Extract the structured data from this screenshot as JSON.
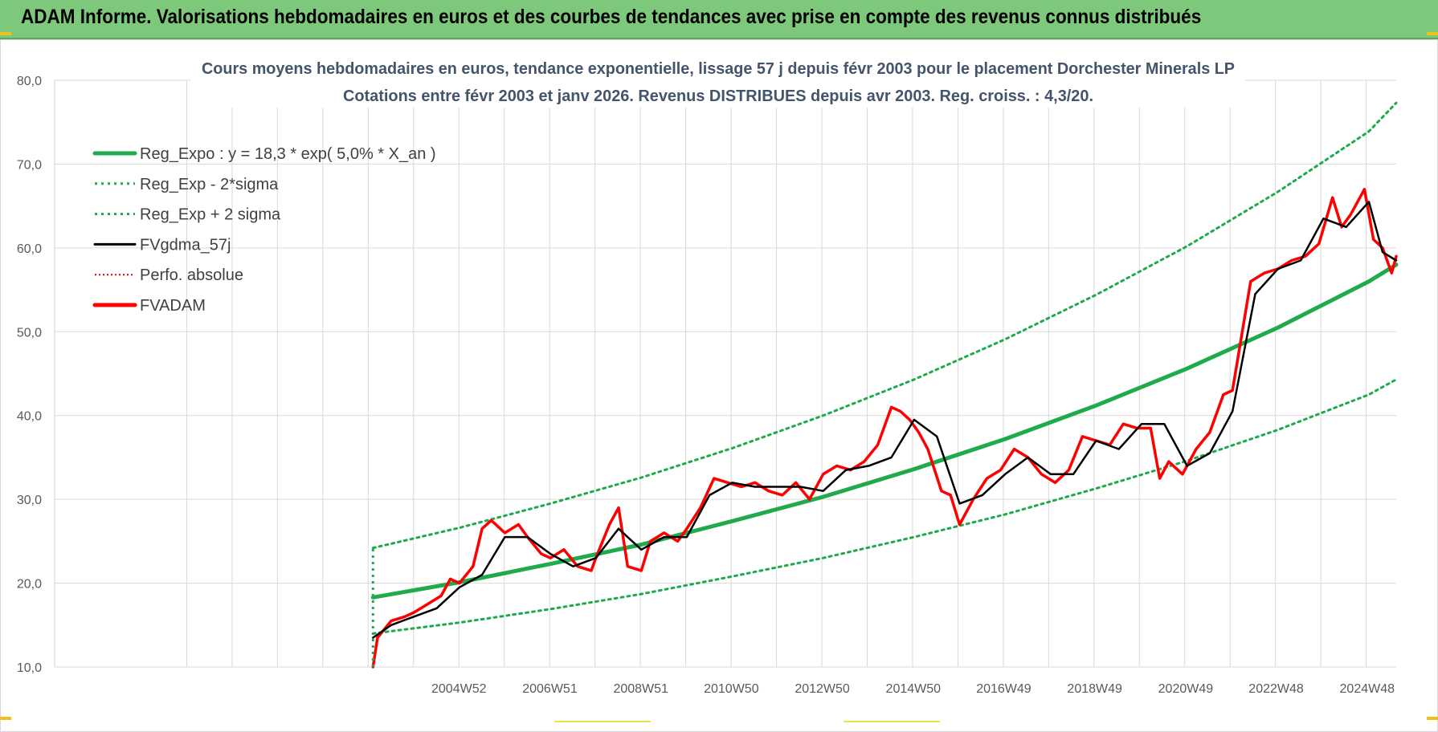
{
  "header": {
    "banner_title": "ADAM Informe. Valorisations hebdomadaires en euros et des courbes de tendances avec prise en compte des revenus connus distribués"
  },
  "colors": {
    "banner_bg": "#7ec87b",
    "regression": "#1faa4b",
    "band": "#1faa4b",
    "fvgdma": "#000000",
    "fvadam": "#ff0000",
    "perfo": "#e00000",
    "grid": "#d9d9d9"
  },
  "chart_data": {
    "type": "line",
    "title": "Cours moyens hebdomadaires en euros, tendance exponentielle, lissage 57 j depuis févr 2003 pour le placement Dorchester Minerals LP",
    "subtitle": "Cotations entre févr 2003 et janv 2026. Revenus DISTRIBUES depuis avr 2003. Reg. croiss. : 4,3/20.",
    "xlabel": "",
    "ylabel": "",
    "ylim": [
      10,
      80
    ],
    "yticks": [
      "10,0",
      "20,0",
      "30,0",
      "40,0",
      "50,0",
      "60,0",
      "70,0",
      "80,0"
    ],
    "xlim": [
      1996.1,
      2025.6
    ],
    "xtick_labels": [
      "2004W52",
      "2006W51",
      "2008W51",
      "2010W50",
      "2012W50",
      "2014W50",
      "2016W49",
      "2018W49",
      "2020W49",
      "2022W48",
      "2024W48"
    ],
    "xtick_positions": [
      2004.99,
      2006.99,
      2008.99,
      2010.98,
      2012.98,
      2014.98,
      2016.97,
      2018.97,
      2020.97,
      2022.96,
      2024.96
    ],
    "grid": true,
    "legend_position": "top-left",
    "legend": [
      "Reg_Expo : y = 18,3 * exp( 5,0% *  X_an )",
      "Reg_Exp - 2*sigma",
      "Reg_Exp + 2 sigma",
      "FVgdma_57j",
      "Perfo. absolue",
      "FVADAM"
    ],
    "series": [
      {
        "name": "Reg_Expo : y = 18,3 * exp( 5,0% *  X_an )",
        "style": "solid-thick",
        "x": [
          2003.1,
          2005.0,
          2007.0,
          2009.0,
          2011.0,
          2013.0,
          2015.0,
          2017.0,
          2019.0,
          2021.0,
          2023.0,
          2025.0,
          2025.6
        ],
        "y": [
          18.3,
          20.1,
          22.3,
          24.6,
          27.4,
          30.3,
          33.6,
          37.2,
          41.2,
          45.6,
          50.5,
          56.0,
          58.0
        ]
      },
      {
        "name": "Reg_Exp - 2*sigma",
        "style": "dotted",
        "x": [
          2003.1,
          2005.0,
          2007.0,
          2009.0,
          2011.0,
          2013.0,
          2015.0,
          2017.0,
          2019.0,
          2021.0,
          2023.0,
          2025.0,
          2025.6
        ],
        "y": [
          14.0,
          15.3,
          16.9,
          18.7,
          20.8,
          23.0,
          25.5,
          28.2,
          31.3,
          34.6,
          38.3,
          42.5,
          44.3
        ]
      },
      {
        "name": "Reg_Exp + 2 sigma",
        "style": "dotted",
        "x": [
          2003.1,
          2005.0,
          2007.0,
          2009.0,
          2011.0,
          2013.0,
          2015.0,
          2017.0,
          2019.0,
          2021.0,
          2023.0,
          2025.0,
          2025.6
        ],
        "y": [
          24.2,
          26.6,
          29.5,
          32.6,
          36.1,
          40.0,
          44.3,
          49.1,
          54.4,
          60.2,
          66.7,
          73.9,
          77.3
        ]
      },
      {
        "name": "FVgdma_57j",
        "style": "solid",
        "x": [
          2003.1,
          2003.5,
          2004.0,
          2004.5,
          2005.0,
          2005.5,
          2006.0,
          2006.5,
          2007.0,
          2007.5,
          2008.0,
          2008.5,
          2009.0,
          2009.5,
          2010.0,
          2010.5,
          2011.0,
          2011.5,
          2012.0,
          2012.5,
          2013.0,
          2013.5,
          2014.0,
          2014.5,
          2015.0,
          2015.5,
          2016.0,
          2016.5,
          2017.0,
          2017.5,
          2018.0,
          2018.5,
          2019.0,
          2019.5,
          2020.0,
          2020.5,
          2021.0,
          2021.5,
          2022.0,
          2022.5,
          2023.0,
          2023.5,
          2024.0,
          2024.5,
          2025.0,
          2025.3,
          2025.6
        ],
        "y": [
          13.5,
          15.0,
          16.0,
          17.0,
          19.5,
          21.0,
          25.5,
          25.5,
          23.5,
          22.0,
          23.0,
          26.5,
          24.0,
          25.5,
          25.5,
          30.5,
          32.0,
          31.5,
          31.5,
          31.5,
          31.0,
          33.5,
          34.0,
          35.0,
          39.5,
          37.5,
          29.5,
          30.5,
          33.0,
          35.0,
          33.0,
          33.0,
          37.0,
          36.0,
          39.0,
          39.0,
          34.0,
          35.5,
          40.5,
          54.5,
          57.5,
          58.5,
          63.5,
          62.5,
          65.5,
          59.5,
          58.5
        ]
      },
      {
        "name": "FVADAM",
        "style": "solid-thick",
        "x": [
          2003.1,
          2003.2,
          2003.5,
          2003.8,
          2004.0,
          2004.3,
          2004.6,
          2004.8,
          2005.0,
          2005.3,
          2005.5,
          2005.7,
          2006.0,
          2006.3,
          2006.5,
          2006.8,
          2007.0,
          2007.3,
          2007.6,
          2007.9,
          2008.0,
          2008.3,
          2008.5,
          2008.7,
          2009.0,
          2009.2,
          2009.5,
          2009.8,
          2010.0,
          2010.3,
          2010.6,
          2010.9,
          2011.2,
          2011.5,
          2011.8,
          2012.1,
          2012.4,
          2012.7,
          2013.0,
          2013.3,
          2013.6,
          2013.9,
          2014.2,
          2014.5,
          2014.7,
          2014.9,
          2015.1,
          2015.3,
          2015.6,
          2015.8,
          2016.0,
          2016.3,
          2016.6,
          2016.9,
          2017.2,
          2017.5,
          2017.8,
          2018.1,
          2018.4,
          2018.7,
          2019.0,
          2019.3,
          2019.6,
          2019.9,
          2020.2,
          2020.4,
          2020.6,
          2020.9,
          2021.2,
          2021.5,
          2021.8,
          2022.0,
          2022.2,
          2022.4,
          2022.7,
          2023.0,
          2023.3,
          2023.6,
          2023.9,
          2024.2,
          2024.4,
          2024.6,
          2024.9,
          2025.1,
          2025.3,
          2025.5,
          2025.6
        ],
        "y": [
          10.0,
          13.5,
          15.5,
          16.0,
          16.5,
          17.5,
          18.5,
          20.5,
          20.0,
          22.0,
          26.5,
          27.5,
          26.0,
          27.0,
          25.5,
          23.5,
          23.0,
          24.0,
          22.0,
          21.5,
          23.0,
          27.0,
          29.0,
          22.0,
          21.5,
          25.0,
          26.0,
          25.0,
          26.5,
          29.0,
          32.5,
          32.0,
          31.5,
          32.0,
          31.0,
          30.5,
          32.0,
          30.0,
          33.0,
          34.0,
          33.5,
          34.5,
          36.5,
          41.0,
          40.5,
          39.5,
          38.0,
          36.0,
          31.0,
          30.5,
          27.0,
          30.0,
          32.5,
          33.5,
          36.0,
          35.0,
          33.0,
          32.0,
          33.5,
          37.5,
          37.0,
          36.5,
          39.0,
          38.5,
          38.5,
          32.5,
          34.5,
          33.0,
          36.0,
          38.0,
          42.5,
          43.0,
          49.5,
          56.0,
          57.0,
          57.5,
          58.5,
          59.0,
          60.5,
          66.0,
          62.5,
          64.0,
          67.0,
          61.0,
          60.0,
          57.0,
          59.0
        ]
      }
    ]
  }
}
